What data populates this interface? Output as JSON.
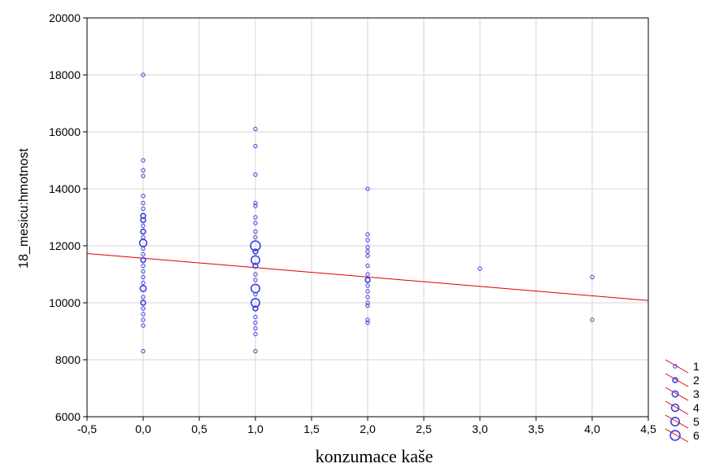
{
  "chart_data": {
    "type": "scatter",
    "title": "",
    "xlabel": "konzumace kaše",
    "ylabel": "18_mesicu:hmotnost",
    "xlim": [
      -0.5,
      4.5
    ],
    "ylim": [
      6000,
      20000
    ],
    "x_ticks": [
      -0.5,
      0.0,
      0.5,
      1.0,
      1.5,
      2.0,
      2.5,
      3.0,
      3.5,
      4.0,
      4.5
    ],
    "x_tick_labels": [
      "-0,5",
      "0,0",
      "0,5",
      "1,0",
      "1,5",
      "2,0",
      "2,5",
      "3,0",
      "3,5",
      "4,0",
      "4,5"
    ],
    "y_ticks": [
      6000,
      8000,
      10000,
      12000,
      14000,
      16000,
      18000,
      20000
    ],
    "y_tick_labels": [
      "6000",
      "8000",
      "10000",
      "12000",
      "14000",
      "16000",
      "18000",
      "20000"
    ],
    "grid": true,
    "point_color": "#4040e0",
    "line_color": "#e00000",
    "regression_line": {
      "x": [
        -0.5,
        4.5
      ],
      "y": [
        11730,
        10080
      ]
    },
    "legend": {
      "placement": "bottom-right-outside",
      "labels": [
        "1",
        "2",
        "3",
        "4",
        "5",
        "6"
      ]
    },
    "points": [
      {
        "x": 0,
        "y": 18000,
        "n": 1
      },
      {
        "x": 0,
        "y": 15000,
        "n": 1
      },
      {
        "x": 0,
        "y": 14650,
        "n": 1
      },
      {
        "x": 0,
        "y": 14450,
        "n": 1
      },
      {
        "x": 0,
        "y": 13750,
        "n": 1
      },
      {
        "x": 0,
        "y": 13500,
        "n": 1
      },
      {
        "x": 0,
        "y": 13300,
        "n": 1
      },
      {
        "x": 0,
        "y": 13050,
        "n": 2
      },
      {
        "x": 0,
        "y": 12900,
        "n": 2
      },
      {
        "x": 0,
        "y": 12700,
        "n": 1
      },
      {
        "x": 0,
        "y": 12500,
        "n": 2
      },
      {
        "x": 0,
        "y": 12300,
        "n": 1
      },
      {
        "x": 0,
        "y": 12100,
        "n": 4
      },
      {
        "x": 0,
        "y": 11900,
        "n": 1
      },
      {
        "x": 0,
        "y": 11700,
        "n": 1
      },
      {
        "x": 0,
        "y": 11500,
        "n": 2
      },
      {
        "x": 0,
        "y": 11300,
        "n": 1
      },
      {
        "x": 0,
        "y": 11100,
        "n": 1
      },
      {
        "x": 0,
        "y": 10900,
        "n": 1
      },
      {
        "x": 0,
        "y": 10700,
        "n": 1
      },
      {
        "x": 0,
        "y": 10500,
        "n": 3
      },
      {
        "x": 0,
        "y": 10200,
        "n": 1
      },
      {
        "x": 0,
        "y": 10000,
        "n": 2
      },
      {
        "x": 0,
        "y": 9800,
        "n": 1
      },
      {
        "x": 0,
        "y": 9600,
        "n": 1
      },
      {
        "x": 0,
        "y": 9400,
        "n": 1
      },
      {
        "x": 0,
        "y": 9200,
        "n": 1
      },
      {
        "x": 0,
        "y": 8300,
        "n": 1
      },
      {
        "x": 1,
        "y": 16100,
        "n": 1
      },
      {
        "x": 1,
        "y": 15500,
        "n": 1
      },
      {
        "x": 1,
        "y": 14500,
        "n": 1
      },
      {
        "x": 1,
        "y": 13500,
        "n": 1
      },
      {
        "x": 1,
        "y": 13400,
        "n": 1
      },
      {
        "x": 1,
        "y": 13000,
        "n": 1
      },
      {
        "x": 1,
        "y": 12800,
        "n": 1
      },
      {
        "x": 1,
        "y": 12500,
        "n": 1
      },
      {
        "x": 1,
        "y": 12300,
        "n": 1
      },
      {
        "x": 1,
        "y": 12000,
        "n": 6
      },
      {
        "x": 1,
        "y": 11800,
        "n": 2
      },
      {
        "x": 1,
        "y": 11500,
        "n": 5
      },
      {
        "x": 1,
        "y": 11300,
        "n": 2
      },
      {
        "x": 1,
        "y": 11000,
        "n": 1
      },
      {
        "x": 1,
        "y": 10800,
        "n": 1
      },
      {
        "x": 1,
        "y": 10500,
        "n": 5
      },
      {
        "x": 1,
        "y": 10300,
        "n": 1
      },
      {
        "x": 1,
        "y": 10000,
        "n": 5
      },
      {
        "x": 1,
        "y": 9800,
        "n": 2
      },
      {
        "x": 1,
        "y": 9500,
        "n": 1
      },
      {
        "x": 1,
        "y": 9300,
        "n": 1
      },
      {
        "x": 1,
        "y": 9100,
        "n": 1
      },
      {
        "x": 1,
        "y": 8900,
        "n": 1
      },
      {
        "x": 1,
        "y": 8300,
        "n": 1
      },
      {
        "x": 2,
        "y": 14000,
        "n": 1
      },
      {
        "x": 2,
        "y": 12400,
        "n": 1
      },
      {
        "x": 2,
        "y": 12200,
        "n": 1
      },
      {
        "x": 2,
        "y": 11950,
        "n": 1
      },
      {
        "x": 2,
        "y": 11800,
        "n": 1
      },
      {
        "x": 2,
        "y": 11650,
        "n": 1
      },
      {
        "x": 2,
        "y": 11300,
        "n": 1
      },
      {
        "x": 2,
        "y": 11000,
        "n": 1
      },
      {
        "x": 2,
        "y": 10800,
        "n": 2
      },
      {
        "x": 2,
        "y": 10600,
        "n": 1
      },
      {
        "x": 2,
        "y": 10400,
        "n": 1
      },
      {
        "x": 2,
        "y": 10200,
        "n": 1
      },
      {
        "x": 2,
        "y": 10000,
        "n": 1
      },
      {
        "x": 2,
        "y": 9900,
        "n": 1
      },
      {
        "x": 2,
        "y": 9400,
        "n": 1
      },
      {
        "x": 2,
        "y": 9300,
        "n": 1
      },
      {
        "x": 3,
        "y": 11200,
        "n": 1
      },
      {
        "x": 4,
        "y": 10900,
        "n": 1
      },
      {
        "x": 4,
        "y": 9400,
        "n": 1
      }
    ]
  }
}
